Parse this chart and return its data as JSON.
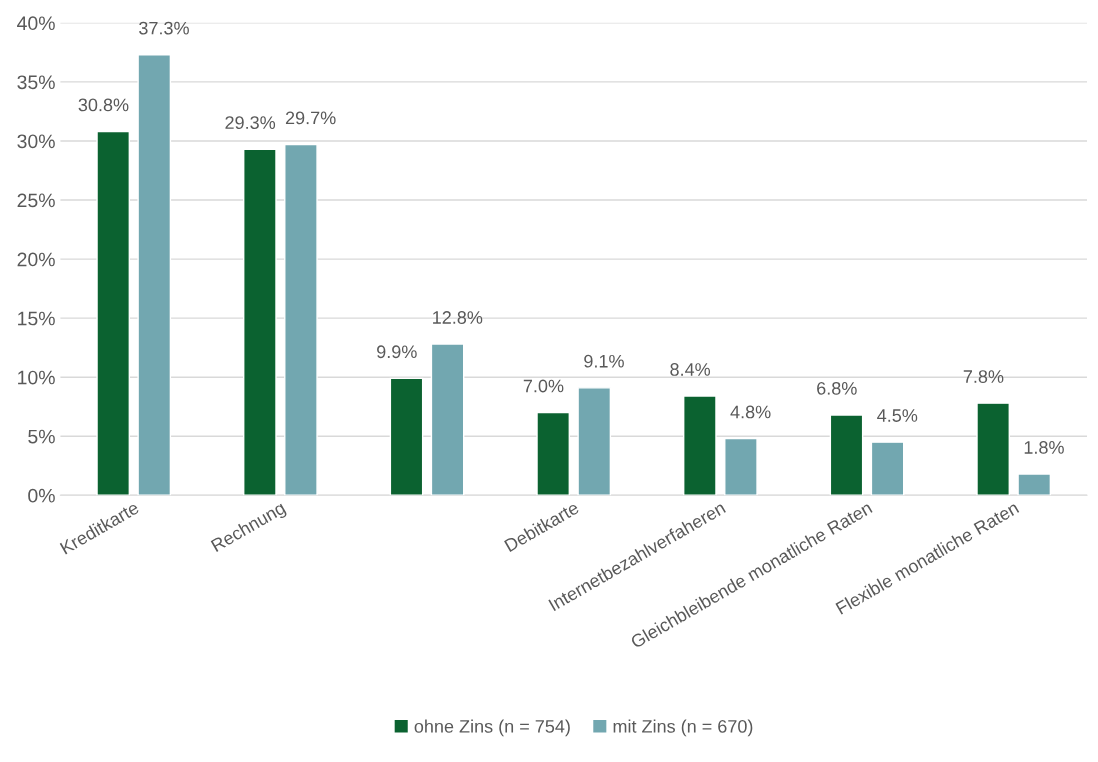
{
  "chart_data": {
    "type": "bar",
    "categories": [
      "Kreditkarte",
      "Rechnung",
      null,
      "Debitkarte",
      "Internetbezahlverfaheren",
      "Gleichbleibende monatliche Raten",
      "Flexible monatliche Raten"
    ],
    "series": [
      {
        "name": "ohne Zins (n = 754)",
        "color": "#0b6230",
        "values": [
          30.8,
          29.3,
          9.9,
          7.0,
          8.4,
          6.8,
          7.8
        ],
        "value_labels": [
          "30.8%",
          "29.3%",
          "9.9%",
          "7.0%",
          "8.4%",
          "6.8%",
          "7.8%"
        ]
      },
      {
        "name": "mit Zins (n = 670)",
        "color": "#72a7b0",
        "values": [
          37.3,
          29.7,
          12.8,
          9.1,
          4.8,
          4.5,
          1.8
        ],
        "value_labels": [
          "37.3%",
          "29.7%",
          "12.8%",
          "9.1%",
          "4.8%",
          "4.5%",
          "1.8%"
        ]
      }
    ],
    "ylim": [
      0,
      40
    ],
    "yticks": [
      {
        "value": 0,
        "label": "0%"
      },
      {
        "value": 5,
        "label": "5%"
      },
      {
        "value": 10,
        "label": "10%"
      },
      {
        "value": 15,
        "label": "15%"
      },
      {
        "value": 20,
        "label": "20%"
      },
      {
        "value": 25,
        "label": "25%"
      },
      {
        "value": 30,
        "label": "30%"
      },
      {
        "value": 35,
        "label": "35%"
      },
      {
        "value": 40,
        "label": "40%"
      }
    ],
    "grid": "y",
    "legend": "bottom"
  }
}
